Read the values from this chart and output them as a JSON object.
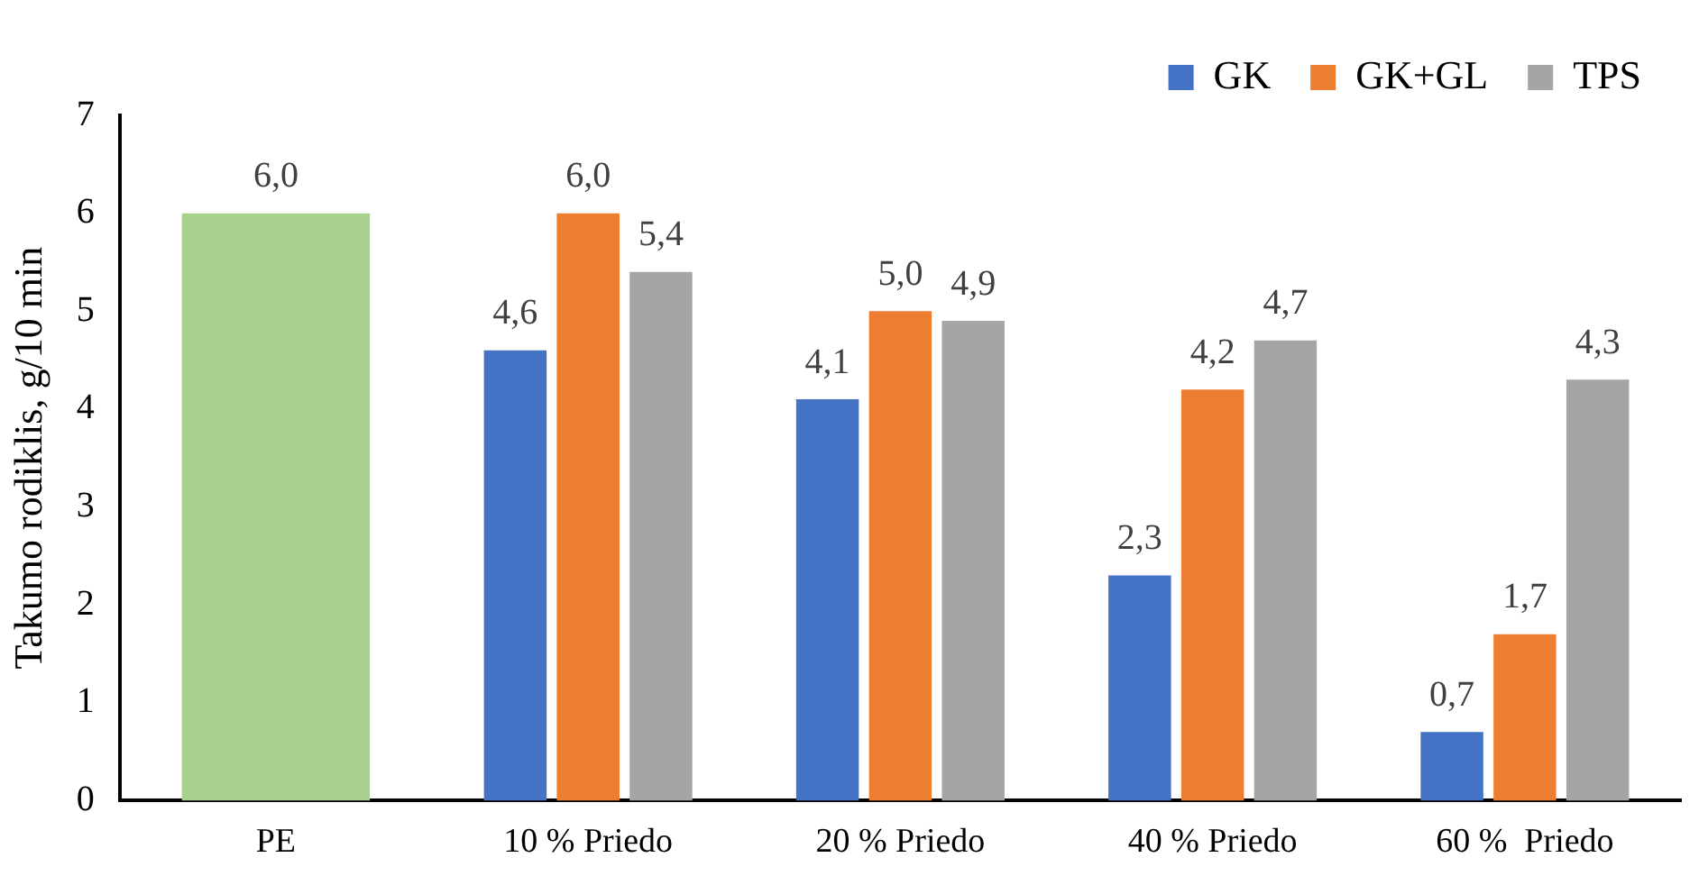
{
  "chart_data": {
    "type": "bar",
    "ylabel": "Takumo rodiklis, g/10 min",
    "categories": [
      "PE",
      "10 % Priedo",
      "20 % Priedo",
      "40 % Priedo",
      "60 %  Priedo"
    ],
    "series": [
      {
        "color": "#a9d18e",
        "values": [
          6.0,
          null,
          null,
          null,
          null
        ],
        "value_labels": [
          "6,0",
          null,
          null,
          null,
          null
        ]
      },
      {
        "name": "GK",
        "color": "#4472c4",
        "values": [
          null,
          4.6,
          4.1,
          2.3,
          0.7
        ],
        "value_labels": [
          null,
          "4,6",
          "4,1",
          "2,3",
          "0,7"
        ]
      },
      {
        "name": "GK+GL",
        "color": "#ed7d31",
        "values": [
          null,
          6.0,
          5.0,
          4.2,
          1.7
        ],
        "value_labels": [
          null,
          "6,0",
          "5,0",
          "4,2",
          "1,7"
        ]
      },
      {
        "name": "TPS",
        "color": "#a5a5a5",
        "values": [
          null,
          5.4,
          4.9,
          4.7,
          4.3
        ],
        "value_labels": [
          null,
          "5,4",
          "4,9",
          "4,7",
          "4,3"
        ]
      }
    ],
    "ylim": [
      0,
      7
    ],
    "yticks": [
      0,
      1,
      2,
      3,
      4,
      5,
      6,
      7
    ],
    "grid": false,
    "legend": "top right"
  }
}
